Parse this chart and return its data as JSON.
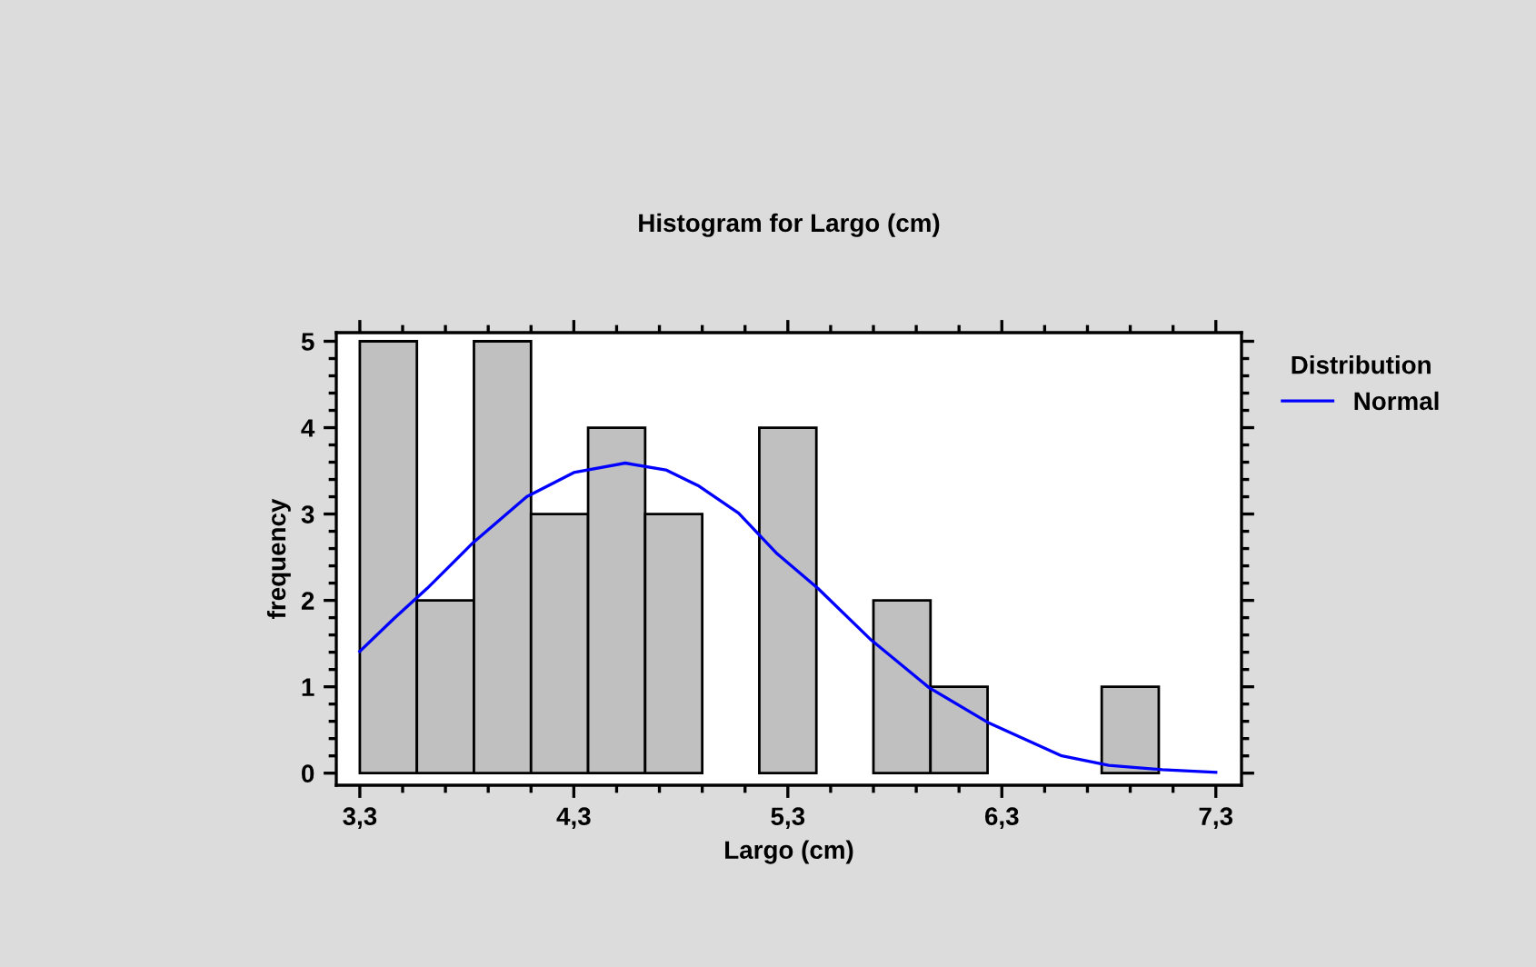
{
  "chart_data": {
    "type": "histogram",
    "title": "Histogram for Largo (cm)",
    "xlabel": "Largo (cm)",
    "ylabel": "frequency",
    "legend_title": "Distribution",
    "bins": [
      3.3,
      3.5667,
      3.8333,
      4.1,
      4.3667,
      4.6333,
      4.9,
      5.1667,
      5.4333,
      5.7,
      5.9667,
      6.2333,
      6.5,
      6.7667,
      7.0333,
      7.3
    ],
    "values": [
      5,
      2,
      5,
      3,
      4,
      3,
      0,
      4,
      0,
      2,
      1,
      0,
      0,
      1,
      0
    ],
    "color": "#c0c0c0",
    "series": [
      {
        "type": "line",
        "name": "Normal",
        "color": "#0000ff",
        "x": [
          3.3,
          3.46,
          3.615,
          3.83,
          4.08,
          4.3,
          4.54,
          4.73,
          4.88,
          5.07,
          5.25,
          5.44,
          5.69,
          5.96,
          6.24,
          6.58,
          6.8,
          7.05,
          7.3
        ],
        "values": [
          1.41,
          1.79,
          2.14,
          2.67,
          3.2,
          3.48,
          3.59,
          3.51,
          3.33,
          3.01,
          2.54,
          2.14,
          1.54,
          0.99,
          0.58,
          0.2,
          0.09,
          0.04,
          0.01
        ]
      }
    ],
    "xlim": [
      3.19,
      7.42
    ],
    "ylim": [
      -0.14,
      5.1
    ],
    "xticks": [
      {
        "value": 3.3,
        "label": "3,3"
      },
      {
        "value": 4.3,
        "label": "4,3"
      },
      {
        "value": 5.3,
        "label": "5,3"
      },
      {
        "value": 6.3,
        "label": "6,3"
      },
      {
        "value": 7.3,
        "label": "7,3"
      }
    ],
    "yticks": [
      0,
      1,
      2,
      3,
      4,
      5
    ],
    "legend": "right",
    "grid": false
  }
}
